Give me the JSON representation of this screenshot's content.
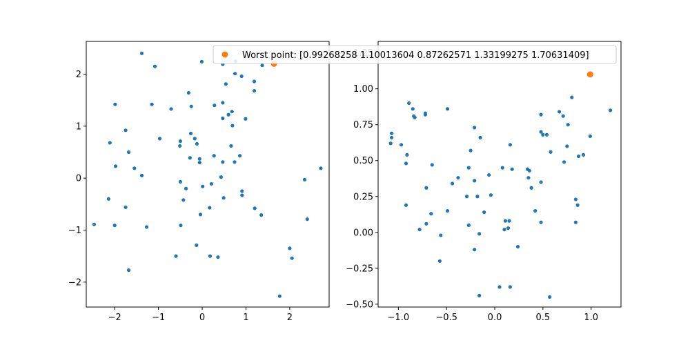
{
  "colors": {
    "blue": "#1f77b4",
    "orange": "#ff7f0e"
  },
  "chart_data": [
    {
      "type": "scatter",
      "xlim": [
        -2.65,
        2.9
      ],
      "ylim": [
        -2.48,
        2.63
      ],
      "xticks": [
        -2,
        -1,
        0,
        1,
        2
      ],
      "xtick_labels": [
        "−2",
        "−1",
        "0",
        "1",
        "2"
      ],
      "yticks": [
        -2,
        -1,
        0,
        1,
        2
      ],
      "ytick_labels": [
        "−2",
        "−1",
        "0",
        "1",
        "2"
      ],
      "grid": false,
      "series": [
        {
          "color": "#1f77b4",
          "marker": "dot",
          "points": [
            [
              -1.38,
              2.4
            ],
            [
              -1.08,
              2.15
            ],
            [
              -0.01,
              2.24
            ],
            [
              0.47,
              2.19
            ],
            [
              0.76,
              2.25
            ],
            [
              1.37,
              2.17
            ],
            [
              0.75,
              2.01
            ],
            [
              0.9,
              1.96
            ],
            [
              1.19,
              1.86
            ],
            [
              0.54,
              1.81
            ],
            [
              1.19,
              1.68
            ],
            [
              -0.31,
              1.64
            ],
            [
              -1.99,
              1.42
            ],
            [
              -1.15,
              1.42
            ],
            [
              0.28,
              1.4
            ],
            [
              0.47,
              1.45
            ],
            [
              -0.25,
              1.38
            ],
            [
              -0.71,
              1.33
            ],
            [
              0.6,
              1.22
            ],
            [
              0.68,
              1.28
            ],
            [
              0.47,
              1.15
            ],
            [
              0.99,
              1.14
            ],
            [
              0.69,
              1.01
            ],
            [
              -1.75,
              0.92
            ],
            [
              -0.26,
              0.86
            ],
            [
              -0.97,
              0.76
            ],
            [
              -0.17,
              0.76
            ],
            [
              -0.5,
              0.71
            ],
            [
              -0.12,
              0.66
            ],
            [
              -0.51,
              0.62
            ],
            [
              -2.11,
              0.68
            ],
            [
              -1.68,
              0.5
            ],
            [
              0.66,
              0.62
            ],
            [
              -0.28,
              0.39
            ],
            [
              0.27,
              0.43
            ],
            [
              -0.06,
              0.37
            ],
            [
              -0.06,
              0.3
            ],
            [
              0.86,
              0.43
            ],
            [
              0.47,
              0.31
            ],
            [
              0.74,
              0.31
            ],
            [
              -1.98,
              0.23
            ],
            [
              -1.55,
              0.19
            ],
            [
              -1.38,
              0.05
            ],
            [
              -0.5,
              -0.07
            ],
            [
              -0.37,
              -0.2
            ],
            [
              0.01,
              -0.16
            ],
            [
              0.21,
              -0.11
            ],
            [
              0.43,
              0.02
            ],
            [
              0.91,
              -0.25
            ],
            [
              0.91,
              -0.33
            ],
            [
              -2.14,
              -0.4
            ],
            [
              -1.75,
              -0.56
            ],
            [
              -0.43,
              -0.42
            ],
            [
              0.49,
              -0.38
            ],
            [
              0.17,
              -0.57
            ],
            [
              -0.04,
              -0.7
            ],
            [
              1.2,
              -0.58
            ],
            [
              1.35,
              -0.71
            ],
            [
              -2.47,
              -0.89
            ],
            [
              -2.0,
              -0.91
            ],
            [
              -1.27,
              -0.94
            ],
            [
              -0.49,
              -0.91
            ],
            [
              -0.13,
              -1.29
            ],
            [
              -0.6,
              -1.5
            ],
            [
              0.18,
              -1.5
            ],
            [
              0.36,
              -1.52
            ],
            [
              -1.68,
              -1.77
            ],
            [
              2.0,
              -1.35
            ],
            [
              2.05,
              -1.54
            ],
            [
              1.77,
              -2.27
            ],
            [
              2.71,
              0.19
            ],
            [
              2.34,
              -0.03
            ],
            [
              2.4,
              -0.79
            ]
          ]
        },
        {
          "color": "#ff7f0e",
          "marker": "circle",
          "points": [
            [
              1.64,
              2.2
            ]
          ]
        }
      ],
      "legend": {
        "placement": "top",
        "entries": [
          {
            "label": "Worst point: [0.99268258 1.10013604 0.87262571 1.33199275 1.70631409]",
            "color": "#ff7f0e"
          }
        ]
      }
    },
    {
      "type": "scatter",
      "xlim": [
        -1.21,
        1.31
      ],
      "ylim": [
        -0.52,
        1.33
      ],
      "xticks": [
        -1.0,
        -0.5,
        0.0,
        0.5,
        1.0
      ],
      "xtick_labels": [
        "−1.0",
        "−0.5",
        "0.0",
        "0.5",
        "1.0"
      ],
      "yticks": [
        -0.5,
        -0.25,
        0.0,
        0.25,
        0.5,
        0.75,
        1.0,
        1.25
      ],
      "ytick_labels": [
        "−0.50",
        "−0.25",
        "0.00",
        "0.25",
        "0.50",
        "0.75",
        "1.00",
        "1.25"
      ],
      "grid": false,
      "series": [
        {
          "color": "#1f77b4",
          "marker": "dot",
          "points": [
            [
              -1.07,
              0.69
            ],
            [
              -1.07,
              0.66
            ],
            [
              -1.08,
              0.62
            ],
            [
              -0.97,
              0.61
            ],
            [
              -0.89,
              0.9
            ],
            [
              -0.85,
              0.86
            ],
            [
              -0.84,
              0.81
            ],
            [
              -0.83,
              0.8
            ],
            [
              -0.72,
              0.83
            ],
            [
              -0.72,
              0.82
            ],
            [
              -0.91,
              0.54
            ],
            [
              -0.92,
              0.48
            ],
            [
              -0.92,
              0.19
            ],
            [
              -0.65,
              0.47
            ],
            [
              -0.71,
              0.31
            ],
            [
              -0.49,
              0.86
            ],
            [
              -0.21,
              0.73
            ],
            [
              -0.15,
              0.66
            ],
            [
              -0.25,
              0.57
            ],
            [
              -0.38,
              0.38
            ],
            [
              -0.44,
              0.34
            ],
            [
              -0.27,
              0.45
            ],
            [
              -0.21,
              0.36
            ],
            [
              -0.18,
              0.25
            ],
            [
              -0.29,
              0.25
            ],
            [
              -0.06,
              0.4
            ],
            [
              0.08,
              0.45
            ],
            [
              0.18,
              0.44
            ],
            [
              0.16,
              0.61
            ],
            [
              -0.04,
              0.26
            ],
            [
              -0.66,
              0.13
            ],
            [
              -0.71,
              0.06
            ],
            [
              -0.78,
              0.02
            ],
            [
              -0.56,
              -0.02
            ],
            [
              -0.49,
              0.15
            ],
            [
              -0.27,
              0.05
            ],
            [
              -0.11,
              0.14
            ],
            [
              -0.16,
              -0.01
            ],
            [
              -0.57,
              -0.2
            ],
            [
              -0.21,
              -0.12
            ],
            [
              0.11,
              0.08
            ],
            [
              0.15,
              0.08
            ],
            [
              0.1,
              0.02
            ],
            [
              0.14,
              0.03
            ],
            [
              0.24,
              -0.1
            ],
            [
              0.05,
              -0.38
            ],
            [
              0.16,
              -0.38
            ],
            [
              -0.16,
              -0.44
            ],
            [
              0.34,
              0.44
            ],
            [
              0.36,
              0.43
            ],
            [
              0.35,
              0.38
            ],
            [
              0.38,
              0.31
            ],
            [
              0.42,
              0.15
            ],
            [
              0.48,
              0.35
            ],
            [
              0.48,
              0.07
            ],
            [
              0.48,
              0.7
            ],
            [
              0.48,
              0.82
            ],
            [
              0.5,
              0.68
            ],
            [
              0.54,
              0.68
            ],
            [
              0.58,
              0.56
            ],
            [
              0.67,
              0.84
            ],
            [
              0.71,
              0.81
            ],
            [
              0.8,
              0.94
            ],
            [
              0.76,
              0.75
            ],
            [
              0.75,
              0.6
            ],
            [
              0.72,
              0.49
            ],
            [
              0.87,
              0.53
            ],
            [
              0.92,
              0.54
            ],
            [
              0.99,
              0.67
            ],
            [
              0.84,
              0.23
            ],
            [
              0.86,
              0.19
            ],
            [
              0.84,
              0.07
            ],
            [
              1.2,
              0.85
            ],
            [
              0.57,
              -0.45
            ]
          ]
        },
        {
          "color": "#ff7f0e",
          "marker": "circle",
          "points": [
            [
              0.99,
              1.1
            ]
          ]
        }
      ]
    }
  ]
}
